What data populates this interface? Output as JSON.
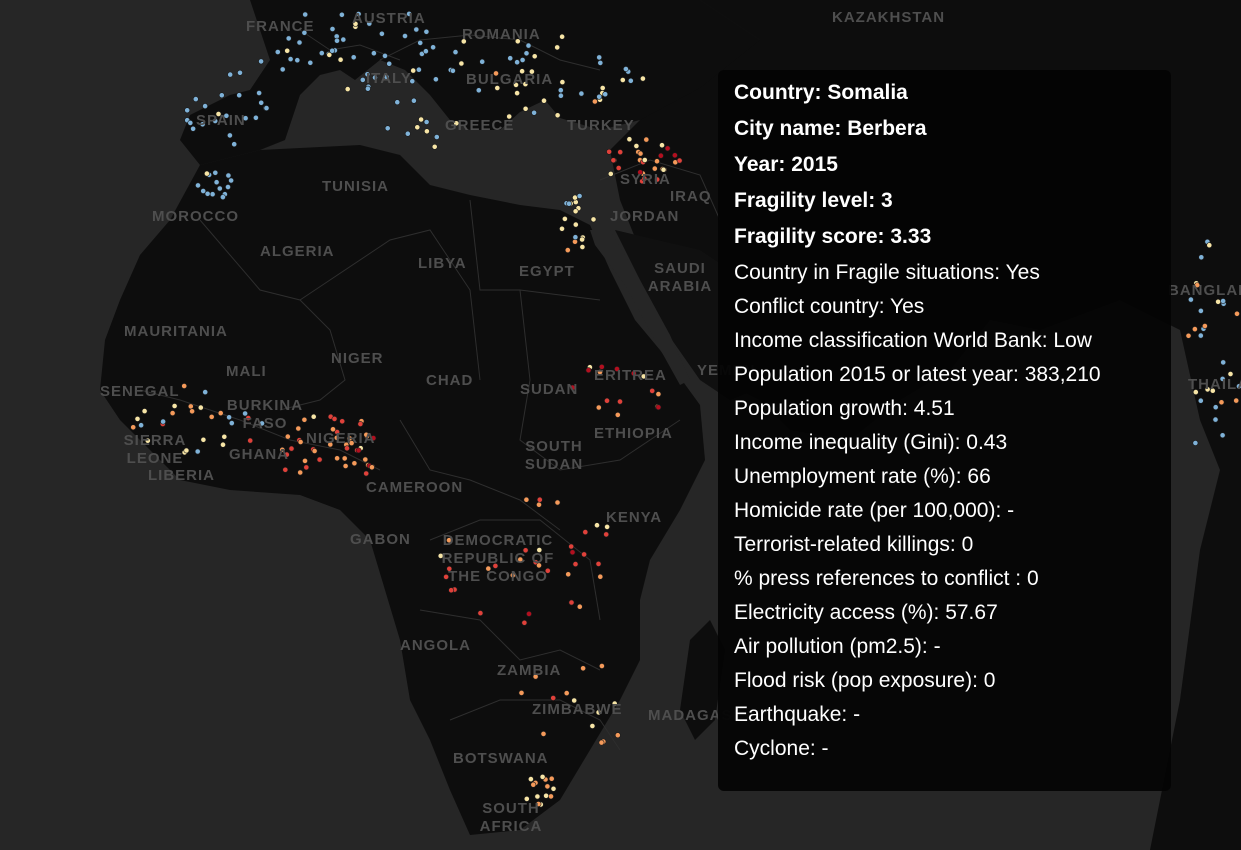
{
  "map": {
    "labels": [
      "KAZAKHSTAN",
      "FRANCE",
      "AUSTRIA",
      "ROMANIA",
      "BULGARIA",
      "ITALY",
      "SPAIN",
      "GREECE",
      "TURKEY",
      "SYRIA",
      "IRAQ",
      "TUNISIA",
      "MOROCCO",
      "JORDAN",
      "ALGERIA",
      "LIBYA",
      "EGYPT",
      "SAUDI ARABIA",
      "MAURITANIA",
      "MALI",
      "NIGER",
      "CHAD",
      "SUDAN",
      "ERITREA",
      "YEMEN",
      "SENEGAL",
      "BURKINA FASO",
      "NIGERIA",
      "GHANA",
      "SIERRA LEONE",
      "LIBERIA",
      "SOUTH SUDAN",
      "ETHIOPIA",
      "CAMEROON",
      "KENYA",
      "GABON",
      "DEMOCRATIC REPUBLIC OF THE CONGO",
      "ANGOLA",
      "ZAMBIA",
      "ZIMBABWE",
      "MADAGASCAR",
      "BOTSWANA",
      "SOUTH AFRICA",
      "BANGLADESH",
      "THAILAND"
    ],
    "legend_colors": {
      "level_1": "#7fb2d8",
      "level_2": "#f7e5a6",
      "level_3": "#f59a5a",
      "level_4": "#e0413a",
      "level_5": "#b20f1f"
    }
  },
  "tooltip": {
    "rows": [
      {
        "text": "Country: Somalia",
        "bold": true
      },
      {
        "text": "City name: Berbera",
        "bold": true
      },
      {
        "text": "Year: 2015",
        "bold": true
      },
      {
        "text": "Fragility level: 3",
        "bold": true
      },
      {
        "text": "Fragility score: 3.33",
        "bold": true
      },
      {
        "text": "Country in Fragile situations: Yes",
        "bold": false
      },
      {
        "text": "Conflict country: Yes",
        "bold": false
      },
      {
        "text": "Income classification World Bank: Low",
        "bold": false
      },
      {
        "text": "Population 2015 or latest year: 383,210",
        "bold": false
      },
      {
        "text": "Population growth: 4.51",
        "bold": false
      },
      {
        "text": "Income inequality (Gini): 0.43",
        "bold": false
      },
      {
        "text": "Unemployment rate (%): 66",
        "bold": false
      },
      {
        "text": "Homicide rate (per 100,000): -",
        "bold": false
      },
      {
        "text": "Terrorist-related killings: 0",
        "bold": false
      },
      {
        "text": "% press references to conflict : 0",
        "bold": false
      },
      {
        "text": "Electricity access (%): 57.67",
        "bold": false
      },
      {
        "text": "Air pollution (pm2.5): -",
        "bold": false
      },
      {
        "text": "Flood risk (pop exposure): 0",
        "bold": false
      },
      {
        "text": "Earthquake: -",
        "bold": false
      },
      {
        "text": "Cyclone: -",
        "bold": false
      }
    ]
  }
}
